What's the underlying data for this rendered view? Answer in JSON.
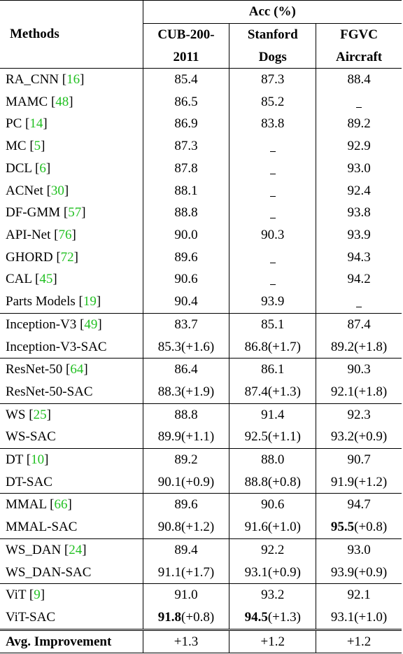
{
  "header": {
    "methods": "Methods",
    "acc": "Acc (%)",
    "datasets": [
      {
        "line1": "CUB-200-",
        "line2": "2011"
      },
      {
        "line1": "Stanford",
        "line2": "Dogs"
      },
      {
        "line1": "FGVC",
        "line2": "Aircraft"
      }
    ]
  },
  "groups": [
    {
      "rows": [
        {
          "name": "RA_CNN [16]",
          "method": "RA_CNN",
          "cite": "16",
          "cub": "85.4",
          "dogs": "87.3",
          "air": "88.4"
        },
        {
          "name": "MAMC [48]",
          "method": "MAMC",
          "cite": "48",
          "cub": "86.5",
          "dogs": "85.2",
          "air": "-"
        },
        {
          "name": "PC [14]",
          "method": "PC",
          "cite": "14",
          "cub": "86.9",
          "dogs": "83.8",
          "air": "89.2"
        },
        {
          "name": "MC [5]",
          "method": "MC",
          "cite": "5",
          "cub": "87.3",
          "dogs": "-",
          "air": "92.9"
        },
        {
          "name": "DCL [6]",
          "method": "DCL",
          "cite": "6",
          "cub": "87.8",
          "dogs": "-",
          "air": "93.0"
        },
        {
          "name": "ACNet [30]",
          "method": "ACNet",
          "cite": "30",
          "cub": "88.1",
          "dogs": "-",
          "air": "92.4"
        },
        {
          "name": "DF-GMM [57]",
          "method": "DF-GMM",
          "cite": "57",
          "cub": "88.8",
          "dogs": "-",
          "air": "93.8"
        },
        {
          "name": "API-Net [76]",
          "method": "API-Net",
          "cite": "76",
          "cub": "90.0",
          "dogs": "90.3",
          "air": "93.9"
        },
        {
          "name": "GHORD [72]",
          "method": "GHORD",
          "cite": "72",
          "cub": "89.6",
          "dogs": "-",
          "air": "94.3"
        },
        {
          "name": "CAL [45]",
          "method": "CAL",
          "cite": "45",
          "cub": "90.6",
          "dogs": "-",
          "air": "94.2"
        },
        {
          "name": "Parts Models [19]",
          "method": "Parts Models",
          "cite": "19",
          "cub": "90.4",
          "dogs": "93.9",
          "air": "-"
        }
      ]
    },
    {
      "rows": [
        {
          "method": "Inception-V3",
          "cite": "49",
          "cub": "83.7",
          "dogs": "85.1",
          "air": "87.4"
        },
        {
          "method": "Inception-V3-SAC",
          "cite": "",
          "cub": "85.3(+1.6)",
          "dogs": "86.8(+1.7)",
          "air": "89.2(+1.8)"
        }
      ]
    },
    {
      "rows": [
        {
          "method": "ResNet-50",
          "cite": "64",
          "cub": "86.4",
          "dogs": "86.1",
          "air": "90.3"
        },
        {
          "method": "ResNet-50-SAC",
          "cite": "",
          "cub": "88.3(+1.9)",
          "dogs": "87.4(+1.3)",
          "air": "92.1(+1.8)"
        }
      ]
    },
    {
      "rows": [
        {
          "method": "WS",
          "cite": "25",
          "cub": "88.8",
          "dogs": "91.4",
          "air": "92.3"
        },
        {
          "method": "WS-SAC",
          "cite": "",
          "cub": "89.9(+1.1)",
          "dogs": "92.5(+1.1)",
          "air": "93.2(+0.9)"
        }
      ]
    },
    {
      "rows": [
        {
          "method": "DT",
          "cite": "10",
          "cub": "89.2",
          "dogs": "88.0",
          "air": "90.7"
        },
        {
          "method": "DT-SAC",
          "cite": "",
          "cub": "90.1(+0.9)",
          "dogs": "88.8(+0.8)",
          "air": "91.9(+1.2)"
        }
      ]
    },
    {
      "rows": [
        {
          "method": "MMAL",
          "cite": "66",
          "cub": "89.6",
          "dogs": "90.6",
          "air": "94.7"
        },
        {
          "method": "MMAL-SAC",
          "cite": "",
          "cub": "90.8(+1.2)",
          "dogs": "91.6(+1.0)",
          "air": "95.5(+0.8)",
          "air_bold": "95.5",
          "air_rest": "(+0.8)"
        }
      ]
    },
    {
      "rows": [
        {
          "method": "WS_DAN",
          "cite": "24",
          "cub": "89.4",
          "dogs": "92.2",
          "air": "93.0"
        },
        {
          "method": "WS_DAN-SAC",
          "cite": "",
          "cub": "91.1(+1.7)",
          "dogs": "93.1(+0.9)",
          "air": "93.9(+0.9)"
        }
      ]
    },
    {
      "rows": [
        {
          "method": "ViT",
          "cite": "9",
          "cub": "91.0",
          "dogs": "93.2",
          "air": "92.1"
        },
        {
          "method": "ViT-SAC",
          "cite": "",
          "cub": "91.8(+0.8)",
          "cub_bold": "91.8",
          "cub_rest": "(+0.8)",
          "dogs": "94.5(+1.3)",
          "dogs_bold": "94.5",
          "dogs_rest": "(+1.3)",
          "air": "93.1(+1.0)"
        }
      ]
    }
  ],
  "avg": {
    "label": "Avg. Improvement",
    "cub": "+1.3",
    "dogs": "+1.2",
    "air": "+1.2"
  },
  "colors": {
    "citation": "#22c022",
    "text": "#000000"
  }
}
